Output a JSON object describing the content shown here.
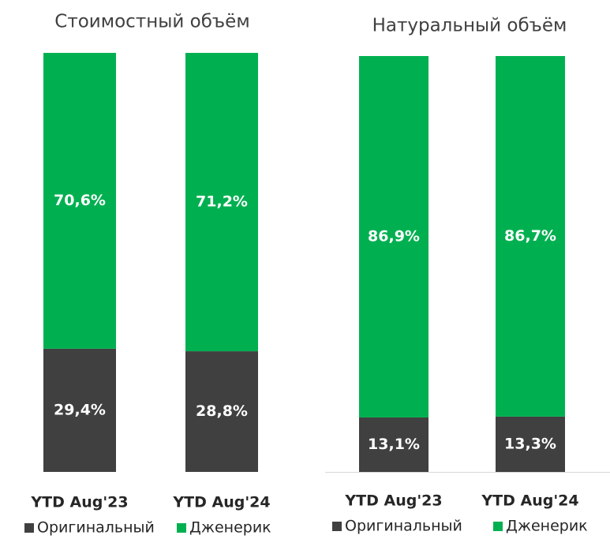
{
  "chart_data": [
    {
      "type": "stacked_bar",
      "title": "Стоимостный объём",
      "categories": [
        "YTD Aug'23",
        "YTD Aug'24"
      ],
      "series": [
        {
          "name": "Оригинальный",
          "color": "#404040",
          "values": [
            29.4,
            28.8
          ],
          "value_labels": [
            "29,4%",
            "28,8%"
          ]
        },
        {
          "name": "Дженерик",
          "color": "#00b050",
          "values": [
            70.6,
            71.2
          ],
          "value_labels": [
            "70,6%",
            "71,2%"
          ]
        }
      ],
      "ylim": [
        0,
        100
      ],
      "legend": "bottom"
    },
    {
      "type": "stacked_bar",
      "title": "Натуральный объём",
      "categories": [
        "YTD Aug'23",
        "YTD Aug'24"
      ],
      "series": [
        {
          "name": "Оригинальный",
          "color": "#404040",
          "values": [
            13.1,
            13.3
          ],
          "value_labels": [
            "13,1%",
            "13,3%"
          ]
        },
        {
          "name": "Дженерик",
          "color": "#00b050",
          "values": [
            86.9,
            86.7
          ],
          "value_labels": [
            "86,9%",
            "86,7%"
          ]
        }
      ],
      "ylim": [
        0,
        100
      ],
      "legend": "bottom"
    }
  ]
}
